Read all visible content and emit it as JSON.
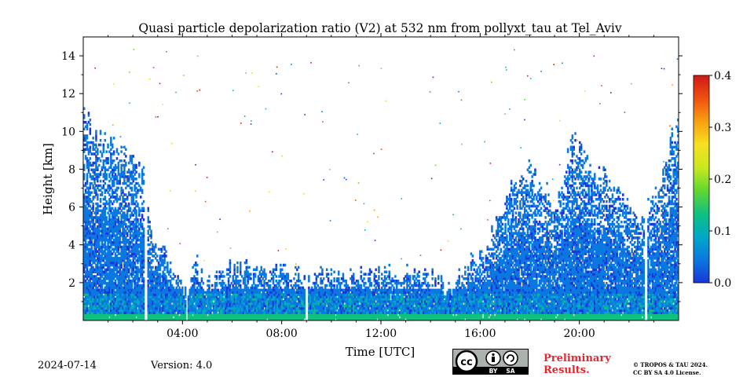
{
  "chart_data": {
    "type": "heatmap",
    "title": "Quasi particle depolarization ratio (V2) at 532 nm from pollyxt_tau at Tel_Aviv",
    "xlabel": "Time [UTC]",
    "ylabel": "Height [km]",
    "xlim": [
      0,
      24
    ],
    "ylim": [
      0,
      15
    ],
    "x_ticks": [
      {
        "value": 4,
        "label": "04:00"
      },
      {
        "value": 8,
        "label": "08:00"
      },
      {
        "value": 12,
        "label": "12:00"
      },
      {
        "value": 16,
        "label": "16:00"
      },
      {
        "value": 20,
        "label": "20:00"
      }
    ],
    "y_ticks": [
      {
        "value": 2,
        "label": "2"
      },
      {
        "value": 4,
        "label": "4"
      },
      {
        "value": 6,
        "label": "6"
      },
      {
        "value": 8,
        "label": "8"
      },
      {
        "value": 10,
        "label": "10"
      },
      {
        "value": 12,
        "label": "12"
      },
      {
        "value": 14,
        "label": "14"
      }
    ],
    "colorbar": {
      "min": 0.0,
      "max": 0.4,
      "ticks": [
        "0.0",
        "0.1",
        "0.2",
        "0.3",
        "0.4"
      ],
      "colormap": [
        "#1a36d8",
        "#0a78e0",
        "#00a8c8",
        "#10c080",
        "#60d830",
        "#c8e820",
        "#f8e020",
        "#f8a010",
        "#f05010",
        "#d01818"
      ]
    },
    "signal_top_km": [
      {
        "time": 0.0,
        "height": 11.0
      },
      {
        "time": 0.5,
        "height": 9.8
      },
      {
        "time": 1.0,
        "height": 9.5
      },
      {
        "time": 1.5,
        "height": 8.8
      },
      {
        "time": 2.0,
        "height": 8.4
      },
      {
        "time": 2.4,
        "height": 7.5
      },
      {
        "time": 2.8,
        "height": 4.5
      },
      {
        "time": 3.3,
        "height": 3.4
      },
      {
        "time": 3.8,
        "height": 2.5
      },
      {
        "time": 4.2,
        "height": 1.2
      },
      {
        "time": 4.5,
        "height": 3.0
      },
      {
        "time": 5.0,
        "height": 1.8
      },
      {
        "time": 6.0,
        "height": 2.8
      },
      {
        "time": 7.0,
        "height": 2.6
      },
      {
        "time": 8.0,
        "height": 2.5
      },
      {
        "time": 9.0,
        "height": 2.4
      },
      {
        "time": 10.0,
        "height": 2.4
      },
      {
        "time": 11.0,
        "height": 2.4
      },
      {
        "time": 12.0,
        "height": 2.3
      },
      {
        "time": 13.0,
        "height": 2.4
      },
      {
        "time": 14.0,
        "height": 2.3
      },
      {
        "time": 14.7,
        "height": 1.6
      },
      {
        "time": 15.5,
        "height": 3.0
      },
      {
        "time": 16.2,
        "height": 3.8
      },
      {
        "time": 17.0,
        "height": 6.5
      },
      {
        "time": 18.0,
        "height": 8.0
      },
      {
        "time": 19.0,
        "height": 6.0
      },
      {
        "time": 19.7,
        "height": 9.5
      },
      {
        "time": 20.5,
        "height": 8.0
      },
      {
        "time": 21.5,
        "height": 7.0
      },
      {
        "time": 22.3,
        "height": 5.5
      },
      {
        "time": 23.0,
        "height": 6.5
      },
      {
        "time": 24.0,
        "height": 11.0
      }
    ],
    "data_gaps_hours": [
      [
        2.45,
        2.6
      ],
      [
        4.15,
        4.22
      ],
      [
        8.95,
        9.08
      ],
      [
        22.6,
        22.72
      ]
    ]
  },
  "footer": {
    "date": "2024-07-14",
    "version": "Version: 4.0",
    "preliminary_line1": "Preliminary",
    "preliminary_line2": "Results.",
    "copyright_line1": "© TROPOS & TAU 2024.",
    "copyright_line2": "CC BY SA 4.0 License.",
    "license_badge": {
      "cc": "cc",
      "by": "BY",
      "sa": "SA"
    }
  }
}
